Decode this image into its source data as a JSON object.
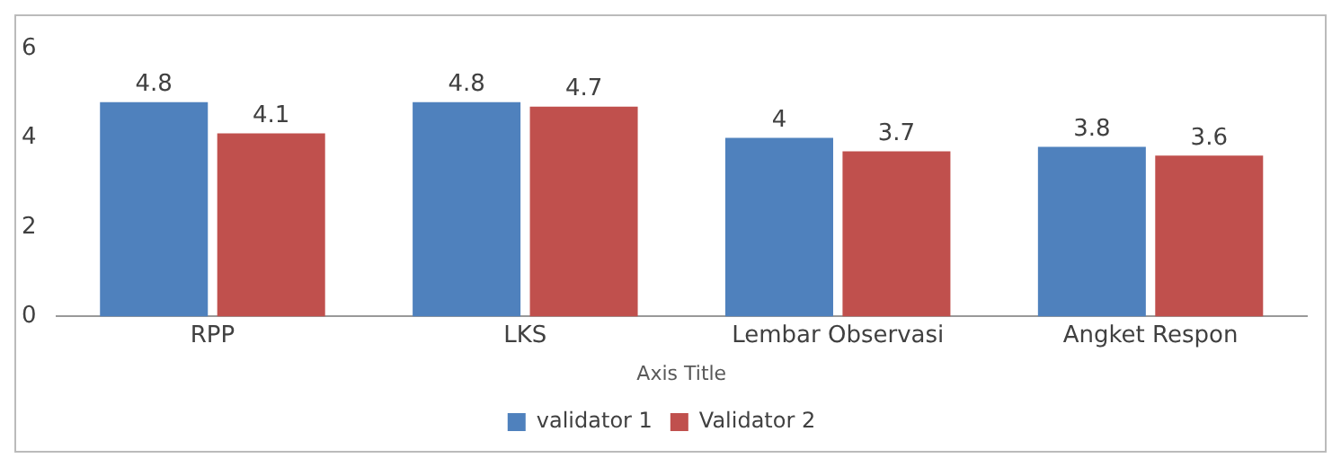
{
  "chart_data": {
    "type": "bar",
    "xlabel": "Axis Title",
    "categories": [
      "RPP",
      "LKS",
      "Lembar Observasi",
      "Angket Respon"
    ],
    "series": [
      {
        "name": "validator 1",
        "color": "#4f81bd",
        "values": [
          4.8,
          4.8,
          4,
          3.8
        ]
      },
      {
        "name": "Validator 2",
        "color": "#c0504d",
        "values": [
          4.1,
          4.7,
          3.7,
          3.6
        ]
      }
    ],
    "ylim": [
      0,
      6
    ],
    "yticks": [
      0,
      2,
      4,
      6
    ],
    "grid": false,
    "legend": "bottom",
    "data_labels": true
  }
}
